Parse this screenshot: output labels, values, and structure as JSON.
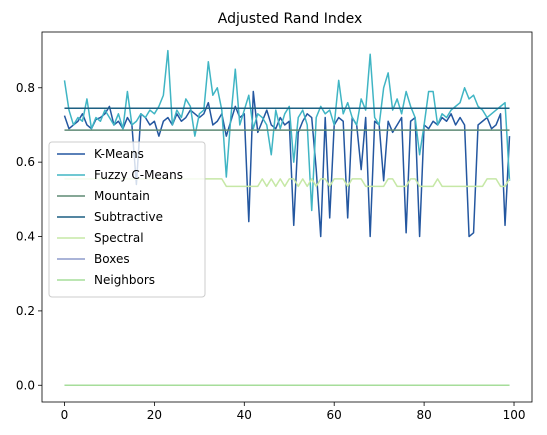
{
  "chart_data": {
    "type": "line",
    "title": "Adjusted Rand Index",
    "xlabel": "",
    "ylabel": "",
    "xlim": [
      -5,
      104
    ],
    "ylim": [
      -0.045,
      0.95
    ],
    "xticks": [
      0,
      20,
      40,
      60,
      80,
      100
    ],
    "yticks": [
      0.0,
      0.2,
      0.4,
      0.6,
      0.8
    ],
    "ytick_labels": [
      "0.0",
      "0.2",
      "0.4",
      "0.6",
      "0.8"
    ],
    "grid": false,
    "legend_position": "center-left",
    "series": [
      {
        "name": "K-Means",
        "color": "#2457a0",
        "values": [
          0.725,
          0.69,
          0.7,
          0.71,
          0.73,
          0.7,
          0.69,
          0.715,
          0.72,
          0.73,
          0.75,
          0.7,
          0.71,
          0.69,
          0.72,
          0.7,
          0.54,
          0.73,
          0.72,
          0.7,
          0.71,
          0.67,
          0.71,
          0.72,
          0.7,
          0.73,
          0.71,
          0.72,
          0.74,
          0.73,
          0.72,
          0.73,
          0.76,
          0.7,
          0.71,
          0.73,
          0.67,
          0.71,
          0.75,
          0.72,
          0.73,
          0.44,
          0.79,
          0.68,
          0.71,
          0.74,
          0.7,
          0.69,
          0.72,
          0.7,
          0.71,
          0.43,
          0.68,
          0.71,
          0.73,
          0.72,
          0.58,
          0.4,
          0.72,
          0.45,
          0.7,
          0.72,
          0.71,
          0.45,
          0.72,
          0.7,
          0.58,
          0.72,
          0.4,
          0.71,
          0.7,
          0.55,
          0.71,
          0.68,
          0.7,
          0.72,
          0.41,
          0.71,
          0.72,
          0.4,
          0.7,
          0.69,
          0.71,
          0.7,
          0.72,
          0.71,
          0.73,
          0.7,
          0.72,
          0.7,
          0.4,
          0.41,
          0.7,
          0.71,
          0.72,
          0.69,
          0.7,
          0.73,
          0.43,
          0.67
        ]
      },
      {
        "name": "Fuzzy C-Means",
        "color": "#40b5c4",
        "values": [
          0.82,
          0.74,
          0.7,
          0.72,
          0.71,
          0.77,
          0.69,
          0.72,
          0.71,
          0.74,
          0.72,
          0.7,
          0.73,
          0.69,
          0.79,
          0.7,
          0.71,
          0.73,
          0.72,
          0.74,
          0.73,
          0.75,
          0.78,
          0.9,
          0.7,
          0.74,
          0.72,
          0.77,
          0.75,
          0.67,
          0.73,
          0.74,
          0.87,
          0.78,
          0.8,
          0.74,
          0.56,
          0.72,
          0.85,
          0.7,
          0.74,
          0.78,
          0.69,
          0.73,
          0.72,
          0.7,
          0.62,
          0.74,
          0.69,
          0.73,
          0.75,
          0.6,
          0.72,
          0.74,
          0.7,
          0.47,
          0.72,
          0.75,
          0.73,
          0.74,
          0.7,
          0.82,
          0.73,
          0.76,
          0.72,
          0.7,
          0.77,
          0.74,
          0.89,
          0.72,
          0.7,
          0.8,
          0.84,
          0.74,
          0.77,
          0.73,
          0.79,
          0.75,
          0.72,
          0.62,
          0.7,
          0.79,
          0.79,
          0.7,
          0.73,
          0.72,
          0.74,
          0.75,
          0.76,
          0.8,
          0.77,
          0.78,
          0.75,
          0.74,
          0.72,
          0.73,
          0.74,
          0.75,
          0.76,
          0.55
        ]
      },
      {
        "name": "Mountain",
        "color": "#5e8a74",
        "values": [
          0.686,
          0.686,
          0.686,
          0.686,
          0.686,
          0.686,
          0.686,
          0.686,
          0.686,
          0.686,
          0.686,
          0.686,
          0.686,
          0.686,
          0.686,
          0.686,
          0.686,
          0.686,
          0.686,
          0.686,
          0.686,
          0.686,
          0.686,
          0.686,
          0.686,
          0.686,
          0.686,
          0.686,
          0.686,
          0.686,
          0.686,
          0.686,
          0.686,
          0.686,
          0.686,
          0.686,
          0.686,
          0.686,
          0.686,
          0.686,
          0.686,
          0.686,
          0.686,
          0.686,
          0.686,
          0.686,
          0.686,
          0.686,
          0.686,
          0.686,
          0.686,
          0.686,
          0.686,
          0.686,
          0.686,
          0.686,
          0.686,
          0.686,
          0.686,
          0.686,
          0.686,
          0.686,
          0.686,
          0.686,
          0.686,
          0.686,
          0.686,
          0.686,
          0.686,
          0.686,
          0.686,
          0.686,
          0.686,
          0.686,
          0.686,
          0.686,
          0.686,
          0.686,
          0.686,
          0.686,
          0.686,
          0.686,
          0.686,
          0.686,
          0.686,
          0.686,
          0.686,
          0.686,
          0.686,
          0.686,
          0.686,
          0.686,
          0.686,
          0.686,
          0.686,
          0.686,
          0.686,
          0.686,
          0.686,
          0.686
        ]
      },
      {
        "name": "Subtractive",
        "color": "#1c5f82",
        "values": [
          0.745,
          0.745,
          0.745,
          0.745,
          0.745,
          0.745,
          0.745,
          0.745,
          0.745,
          0.745,
          0.745,
          0.745,
          0.745,
          0.745,
          0.745,
          0.745,
          0.745,
          0.745,
          0.745,
          0.745,
          0.745,
          0.745,
          0.745,
          0.745,
          0.745,
          0.745,
          0.745,
          0.745,
          0.745,
          0.745,
          0.745,
          0.745,
          0.745,
          0.745,
          0.745,
          0.745,
          0.745,
          0.745,
          0.745,
          0.745,
          0.745,
          0.745,
          0.745,
          0.745,
          0.745,
          0.745,
          0.745,
          0.745,
          0.745,
          0.745,
          0.745,
          0.745,
          0.745,
          0.745,
          0.745,
          0.745,
          0.745,
          0.745,
          0.745,
          0.745,
          0.745,
          0.745,
          0.745,
          0.745,
          0.745,
          0.745,
          0.745,
          0.745,
          0.745,
          0.745,
          0.745,
          0.745,
          0.745,
          0.745,
          0.745,
          0.745,
          0.745,
          0.745,
          0.745,
          0.745,
          0.745,
          0.745,
          0.745,
          0.745,
          0.745,
          0.745,
          0.745,
          0.745,
          0.745,
          0.745,
          0.745,
          0.745,
          0.745,
          0.745,
          0.745,
          0.745,
          0.745,
          0.745,
          0.745,
          0.745
        ]
      },
      {
        "name": "Spectral",
        "color": "#c6e8a6",
        "values": [
          0.555,
          0.555,
          0.555,
          0.555,
          0.555,
          0.555,
          0.555,
          0.555,
          0.555,
          0.555,
          0.555,
          0.555,
          0.555,
          0.555,
          0.555,
          0.555,
          0.555,
          0.555,
          0.555,
          0.555,
          0.555,
          0.555,
          0.555,
          0.555,
          0.555,
          0.555,
          0.555,
          0.555,
          0.555,
          0.555,
          0.555,
          0.555,
          0.555,
          0.555,
          0.555,
          0.555,
          0.535,
          0.535,
          0.535,
          0.535,
          0.535,
          0.535,
          0.535,
          0.535,
          0.555,
          0.535,
          0.555,
          0.535,
          0.555,
          0.535,
          0.555,
          0.555,
          0.535,
          0.555,
          0.535,
          0.555,
          0.535,
          0.555,
          0.555,
          0.535,
          0.555,
          0.555,
          0.555,
          0.535,
          0.555,
          0.555,
          0.555,
          0.535,
          0.535,
          0.535,
          0.535,
          0.535,
          0.555,
          0.555,
          0.535,
          0.535,
          0.535,
          0.555,
          0.555,
          0.535,
          0.535,
          0.535,
          0.535,
          0.555,
          0.535,
          0.535,
          0.535,
          0.535,
          0.535,
          0.535,
          0.535,
          0.535,
          0.535,
          0.535,
          0.555,
          0.555,
          0.555,
          0.535,
          0.535,
          0.555
        ]
      },
      {
        "name": "Boxes",
        "color": "#8e9ccc",
        "values": [
          0.0,
          0.0,
          0.0,
          0.0,
          0.0,
          0.0,
          0.0,
          0.0,
          0.0,
          0.0,
          0.0,
          0.0,
          0.0,
          0.0,
          0.0,
          0.0,
          0.0,
          0.0,
          0.0,
          0.0,
          0.0,
          0.0,
          0.0,
          0.0,
          0.0,
          0.0,
          0.0,
          0.0,
          0.0,
          0.0,
          0.0,
          0.0,
          0.0,
          0.0,
          0.0,
          0.0,
          0.0,
          0.0,
          0.0,
          0.0,
          0.0,
          0.0,
          0.0,
          0.0,
          0.0,
          0.0,
          0.0,
          0.0,
          0.0,
          0.0,
          0.0,
          0.0,
          0.0,
          0.0,
          0.0,
          0.0,
          0.0,
          0.0,
          0.0,
          0.0,
          0.0,
          0.0,
          0.0,
          0.0,
          0.0,
          0.0,
          0.0,
          0.0,
          0.0,
          0.0,
          0.0,
          0.0,
          0.0,
          0.0,
          0.0,
          0.0,
          0.0,
          0.0,
          0.0,
          0.0,
          0.0,
          0.0,
          0.0,
          0.0,
          0.0,
          0.0,
          0.0,
          0.0,
          0.0,
          0.0,
          0.0,
          0.0,
          0.0,
          0.0,
          0.0,
          0.0,
          0.0,
          0.0,
          0.0,
          0.0
        ]
      },
      {
        "name": "Neighbors",
        "color": "#a6dd9a",
        "values": [
          0.0,
          0.0,
          0.0,
          0.0,
          0.0,
          0.0,
          0.0,
          0.0,
          0.0,
          0.0,
          0.0,
          0.0,
          0.0,
          0.0,
          0.0,
          0.0,
          0.0,
          0.0,
          0.0,
          0.0,
          0.0,
          0.0,
          0.0,
          0.0,
          0.0,
          0.0,
          0.0,
          0.0,
          0.0,
          0.0,
          0.0,
          0.0,
          0.0,
          0.0,
          0.0,
          0.0,
          0.0,
          0.0,
          0.0,
          0.0,
          0.0,
          0.0,
          0.0,
          0.0,
          0.0,
          0.0,
          0.0,
          0.0,
          0.0,
          0.0,
          0.0,
          0.0,
          0.0,
          0.0,
          0.0,
          0.0,
          0.0,
          0.0,
          0.0,
          0.0,
          0.0,
          0.0,
          0.0,
          0.0,
          0.0,
          0.0,
          0.0,
          0.0,
          0.0,
          0.0,
          0.0,
          0.0,
          0.0,
          0.0,
          0.0,
          0.0,
          0.0,
          0.0,
          0.0,
          0.0,
          0.0,
          0.0,
          0.0,
          0.0,
          0.0,
          0.0,
          0.0,
          0.0,
          0.0,
          0.0,
          0.0,
          0.0,
          0.0,
          0.0,
          0.0,
          0.0,
          0.0,
          0.0,
          0.0,
          0.0
        ]
      }
    ]
  }
}
